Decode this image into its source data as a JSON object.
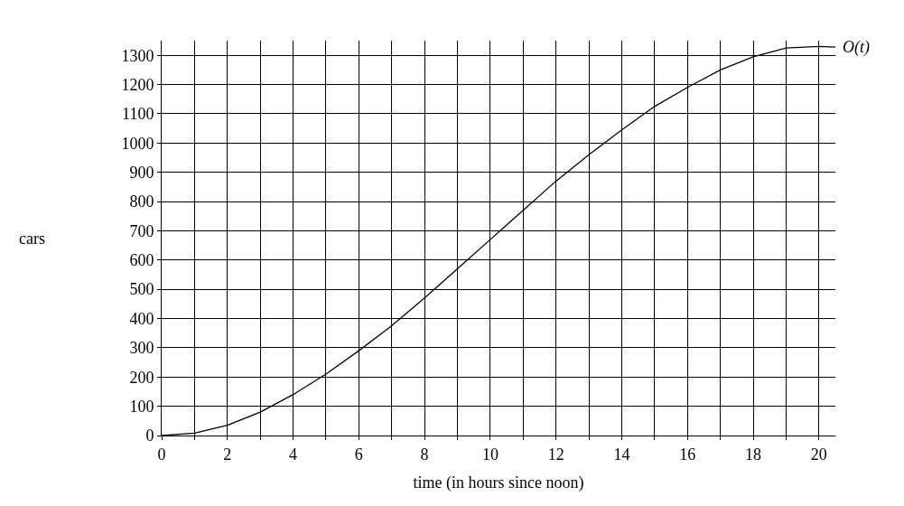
{
  "chart_data": {
    "type": "line",
    "xlabel": "time (in hours since noon)",
    "ylabel": "cars",
    "x": [
      0,
      1,
      2,
      3,
      4,
      5,
      6,
      7,
      8,
      9,
      10,
      11,
      12,
      13,
      14,
      15,
      16,
      17,
      18,
      19,
      20,
      20.5
    ],
    "series": [
      {
        "name": "O(t)",
        "color": "#000000",
        "values": [
          0,
          8,
          35,
          80,
          140,
          210,
          290,
          375,
          470,
          570,
          670,
          770,
          870,
          960,
          1045,
          1125,
          1190,
          1250,
          1295,
          1325,
          1330,
          1328
        ]
      }
    ],
    "xlim": [
      0,
      20.5
    ],
    "ylim": [
      0,
      1350
    ],
    "xticks": [
      0,
      {
        "value": 1,
        "label": null
      },
      2,
      {
        "value": 3,
        "label": null
      },
      4,
      {
        "value": 5,
        "label": null
      },
      6,
      {
        "value": 7,
        "label": null
      },
      8,
      {
        "value": 9,
        "label": null
      },
      10,
      {
        "value": 11,
        "label": null
      },
      12,
      {
        "value": 13,
        "label": null
      },
      14,
      {
        "value": 15,
        "label": null
      },
      16,
      {
        "value": 17,
        "label": null
      },
      18,
      {
        "value": 19,
        "label": null
      },
      20
    ],
    "yticks": [
      0,
      100,
      200,
      300,
      400,
      500,
      600,
      700,
      800,
      900,
      1000,
      1100,
      1200,
      1300
    ],
    "grid": true,
    "legend": false,
    "marker": "none",
    "line_style": "solid"
  }
}
